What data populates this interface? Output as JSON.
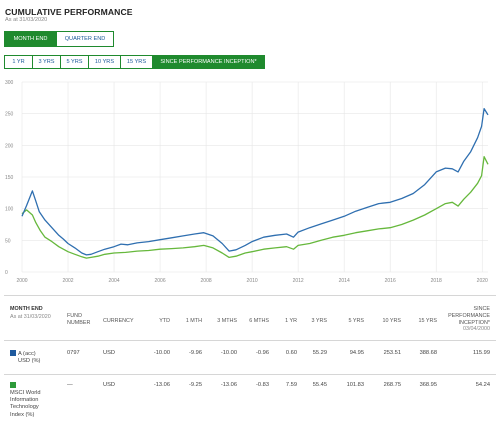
{
  "header": {
    "title": "CUMULATIVE PERFORMANCE",
    "as_at": "As at 31/03/2020"
  },
  "period_toggle": [
    {
      "label": "MONTH END",
      "active": true
    },
    {
      "label": "QUARTER END",
      "active": false
    }
  ],
  "range_buttons": [
    {
      "label": "1 YR",
      "active": false
    },
    {
      "label": "3 YRS",
      "active": false
    },
    {
      "label": "5 YRS",
      "active": false
    },
    {
      "label": "10 YRS",
      "active": false
    },
    {
      "label": "15 YRS",
      "active": false
    },
    {
      "label": "SINCE PERFORMANCE INCEPTION*",
      "active": true
    }
  ],
  "colors": {
    "accent_green": "#1f8a2e",
    "fund_blue": "#2f6fb0",
    "index_green": "#66b83c",
    "link_blue": "#1c5a99"
  },
  "chart_data": {
    "type": "line",
    "title": "",
    "xlabel": "",
    "ylabel": "",
    "xlim": [
      2000,
      2020.25
    ],
    "ylim": [
      0,
      300
    ],
    "x_ticks": [
      2000,
      2002,
      2004,
      2006,
      2008,
      2010,
      2012,
      2014,
      2016,
      2018,
      2020
    ],
    "y_ticks": [
      0,
      50,
      100,
      150,
      200,
      250,
      300
    ],
    "grid": true,
    "series": [
      {
        "name": "A (acc) USD (%)",
        "color": "#2f6fb0",
        "x": [
          2000.0,
          2000.2,
          2000.45,
          2000.6,
          2000.75,
          2001.0,
          2001.3,
          2001.6,
          2001.8,
          2002.0,
          2002.3,
          2002.6,
          2002.8,
          2003.0,
          2003.3,
          2003.6,
          2004.0,
          2004.3,
          2004.6,
          2005.0,
          2005.5,
          2006.0,
          2006.5,
          2007.0,
          2007.5,
          2007.9,
          2008.3,
          2008.7,
          2009.0,
          2009.3,
          2009.7,
          2010.0,
          2010.5,
          2011.0,
          2011.5,
          2011.8,
          2012.0,
          2012.5,
          2013.0,
          2013.5,
          2014.0,
          2014.5,
          2015.0,
          2015.5,
          2016.0,
          2016.5,
          2017.0,
          2017.5,
          2018.0,
          2018.4,
          2018.7,
          2018.95,
          2019.2,
          2019.5,
          2019.8,
          2019.97,
          2020.08,
          2020.25
        ],
        "values": [
          88,
          105,
          128,
          112,
          95,
          82,
          70,
          58,
          52,
          45,
          38,
          30,
          27,
          28,
          32,
          36,
          40,
          44,
          43,
          46,
          48,
          51,
          54,
          57,
          60,
          62,
          57,
          45,
          33,
          35,
          42,
          48,
          55,
          58,
          60,
          55,
          63,
          70,
          76,
          82,
          88,
          96,
          102,
          108,
          110,
          116,
          124,
          138,
          158,
          164,
          163,
          158,
          175,
          190,
          212,
          230,
          258,
          248
        ]
      },
      {
        "name": "MSCI World Information Technology Index (%)",
        "color": "#66b83c",
        "x": [
          2000.0,
          2000.2,
          2000.45,
          2000.6,
          2000.8,
          2001.0,
          2001.3,
          2001.6,
          2001.8,
          2002.0,
          2002.3,
          2002.6,
          2002.8,
          2003.0,
          2003.3,
          2003.6,
          2004.0,
          2004.5,
          2005.0,
          2005.5,
          2006.0,
          2006.5,
          2007.0,
          2007.5,
          2007.9,
          2008.3,
          2008.7,
          2009.0,
          2009.3,
          2009.7,
          2010.0,
          2010.5,
          2011.0,
          2011.5,
          2011.8,
          2012.0,
          2012.5,
          2013.0,
          2013.5,
          2014.0,
          2014.5,
          2015.0,
          2015.5,
          2016.0,
          2016.5,
          2017.0,
          2017.5,
          2018.0,
          2018.4,
          2018.7,
          2018.95,
          2019.2,
          2019.5,
          2019.8,
          2019.97,
          2020.08,
          2020.25
        ],
        "values": [
          92,
          98,
          90,
          78,
          65,
          55,
          48,
          40,
          36,
          32,
          28,
          24,
          22,
          23,
          25,
          28,
          30,
          31,
          33,
          34,
          36,
          37,
          38,
          40,
          42,
          38,
          30,
          23,
          25,
          30,
          32,
          36,
          38,
          40,
          36,
          42,
          45,
          50,
          55,
          58,
          62,
          65,
          68,
          70,
          75,
          82,
          90,
          100,
          108,
          110,
          104,
          115,
          126,
          140,
          152,
          182,
          170
        ]
      }
    ]
  },
  "table": {
    "headers": {
      "month_end": "MONTH END",
      "as_at": "As at 31/03/2020",
      "fund_number": [
        "FUND",
        "NUMBER"
      ],
      "currency": "CURRENCY",
      "ytd": "YTD",
      "m1": "1 MTH",
      "m3": "3 MTHS",
      "m6": "6 MTHS",
      "y1": "1 YR",
      "y3": "3 YRS",
      "y5": "5 YRS",
      "y10": "10 YRS",
      "y15": "15 YRS",
      "inception": [
        "SINCE",
        "PERFORMANCE",
        "INCEPTION*"
      ],
      "inception_date": "03/04/2000"
    },
    "rows": [
      {
        "name_lines": [
          "A (acc)",
          "USD (%)"
        ],
        "color": "#1f5a9e",
        "fund_number": "0797",
        "currency": "USD",
        "ytd": "-10.00",
        "m1": "-9.96",
        "m3": "-10.00",
        "m6": "-0.96",
        "y1": "0.60",
        "y3": "55.29",
        "y5": "94.95",
        "y10": "253.51",
        "y15": "388.68",
        "inception": "115.99"
      },
      {
        "name_lines": [
          "MSCI World",
          "Information",
          "Technology",
          "Index (%)"
        ],
        "color": "#2e9a3a",
        "fund_number": "—",
        "currency": "USD",
        "ytd": "-13.06",
        "m1": "-9.25",
        "m3": "-13.06",
        "m6": "-0.83",
        "y1": "7.59",
        "y3": "55.45",
        "y5": "101.83",
        "y10": "268.75",
        "y15": "368.95",
        "inception": "54.24"
      }
    ]
  }
}
